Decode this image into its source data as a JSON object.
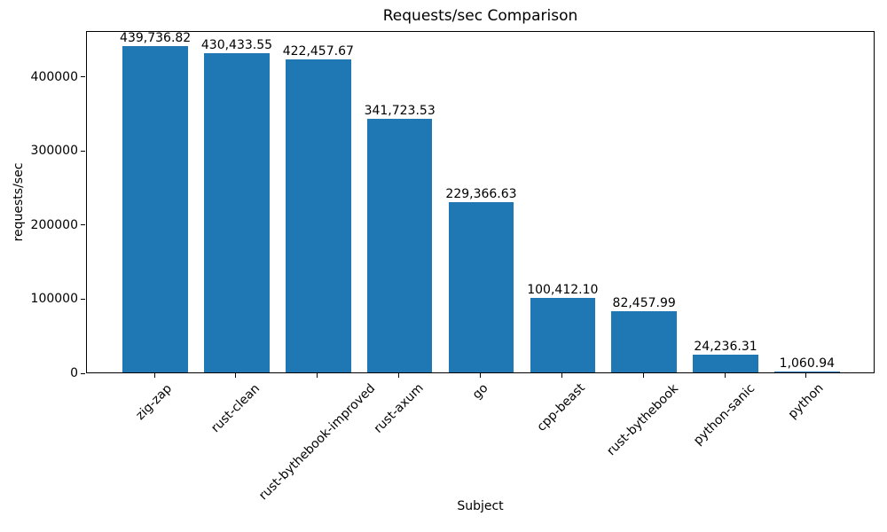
{
  "chart_data": {
    "type": "bar",
    "title": "Requests/sec Comparison",
    "xlabel": "Subject",
    "ylabel": "requests/sec",
    "categories": [
      "zig-zap",
      "rust-clean",
      "rust-bythebook-improved",
      "rust-axum",
      "go",
      "cpp-beast",
      "rust-bythebook",
      "python-sanic",
      "python"
    ],
    "values": [
      439736.82,
      430433.55,
      422457.67,
      341723.53,
      229366.63,
      100412.1,
      82457.99,
      24236.31,
      1060.94
    ],
    "value_labels": [
      "439,736.82",
      "430,433.55",
      "422,457.67",
      "341,723.53",
      "229,366.63",
      "100,412.10",
      "82,457.99",
      "24,236.31",
      "1,060.94"
    ],
    "yticks": [
      0,
      100000,
      200000,
      300000,
      400000
    ],
    "ytick_labels": [
      "0",
      "100000",
      "200000",
      "300000",
      "400000"
    ],
    "ylim": [
      0,
      461723.66
    ],
    "bar_color": "#1f77b4",
    "axis_color": "#000000",
    "text_color": "#000000",
    "grid": false,
    "legend": null,
    "x_tick_rotation_deg": 45
  }
}
